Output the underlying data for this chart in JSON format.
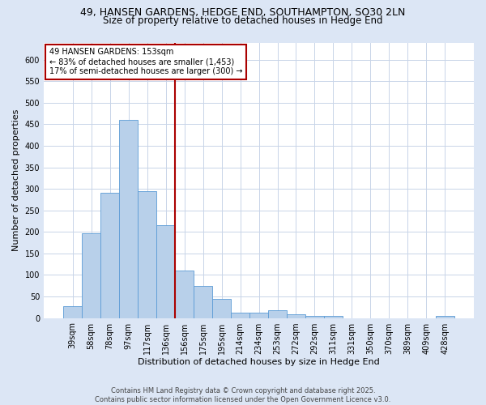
{
  "title_line1": "49, HANSEN GARDENS, HEDGE END, SOUTHAMPTON, SO30 2LN",
  "title_line2": "Size of property relative to detached houses in Hedge End",
  "xlabel": "Distribution of detached houses by size in Hedge End",
  "ylabel": "Number of detached properties",
  "categories": [
    "39sqm",
    "58sqm",
    "78sqm",
    "97sqm",
    "117sqm",
    "136sqm",
    "156sqm",
    "175sqm",
    "195sqm",
    "214sqm",
    "234sqm",
    "253sqm",
    "272sqm",
    "292sqm",
    "311sqm",
    "331sqm",
    "350sqm",
    "370sqm",
    "389sqm",
    "409sqm",
    "428sqm"
  ],
  "values": [
    28,
    197,
    290,
    460,
    295,
    215,
    110,
    75,
    45,
    12,
    12,
    18,
    9,
    5,
    5,
    0,
    0,
    0,
    0,
    0,
    5
  ],
  "bar_color": "#b8d0ea",
  "bar_edgecolor": "#5b9bd5",
  "vline_x_index": 5.5,
  "vline_color": "#aa0000",
  "annotation_text": "49 HANSEN GARDENS: 153sqm\n← 83% of detached houses are smaller (1,453)\n17% of semi-detached houses are larger (300) →",
  "annotation_box_facecolor": "#ffffff",
  "annotation_box_edgecolor": "#aa0000",
  "annotation_fontsize": 7,
  "ylim": [
    0,
    640
  ],
  "yticks": [
    0,
    50,
    100,
    150,
    200,
    250,
    300,
    350,
    400,
    450,
    500,
    550,
    600
  ],
  "figure_facecolor": "#dce6f5",
  "plot_facecolor": "#ffffff",
  "grid_color": "#c8d4e8",
  "footer_text": "Contains HM Land Registry data © Crown copyright and database right 2025.\nContains public sector information licensed under the Open Government Licence v3.0.",
  "title_fontsize": 9,
  "subtitle_fontsize": 8.5,
  "xlabel_fontsize": 8,
  "ylabel_fontsize": 8,
  "tick_fontsize": 7,
  "footer_fontsize": 6
}
